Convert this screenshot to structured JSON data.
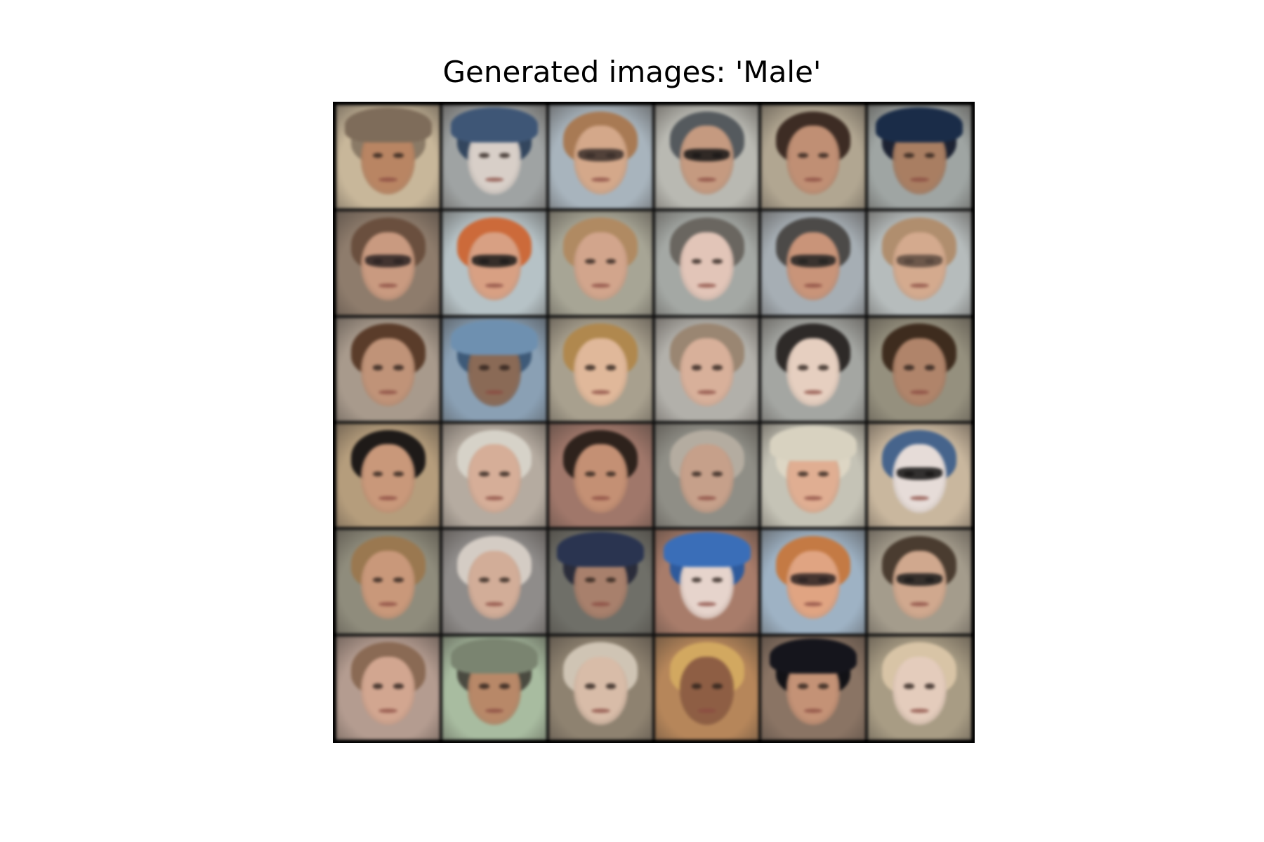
{
  "figure": {
    "title": "Generated images: 'Male'"
  },
  "grid": {
    "rows": 6,
    "cols": 6,
    "border_color": "#000000",
    "tiles": [
      {
        "bg": "#c8b79a",
        "hair": "#8a7a66",
        "skin": "#b98563",
        "acc": "hat",
        "accColor": "#7e6c5a"
      },
      {
        "bg": "#9fa3a3",
        "hair": "#33465e",
        "skin": "#d8cfc8",
        "acc": "hat",
        "accColor": "#3e5676"
      },
      {
        "bg": "#a8b4bd",
        "hair": "#a87a54",
        "skin": "#d4a88a",
        "acc": "glasses",
        "accColor": "#3a2f2a"
      },
      {
        "bg": "#b9b9b2",
        "hair": "#555a5e",
        "skin": "#c59a80",
        "acc": "glasses",
        "accColor": "#151515"
      },
      {
        "bg": "#b1a691",
        "hair": "#3d2c24",
        "skin": "#c08f74",
        "acc": "none",
        "accColor": ""
      },
      {
        "bg": "#9fa5a3",
        "hair": "#1c2232",
        "skin": "#a97e62",
        "acc": "hat",
        "accColor": "#1a2c48"
      },
      {
        "bg": "#8e7c6c",
        "hair": "#6a4f3e",
        "skin": "#c99a80",
        "acc": "glasses",
        "accColor": "#2a2222"
      },
      {
        "bg": "#b6c2c6",
        "hair": "#cc6a3a",
        "skin": "#d8a083",
        "acc": "glasses",
        "accColor": "#1a1a1a"
      },
      {
        "bg": "#a7a595",
        "hair": "#b08a62",
        "skin": "#d2a58c",
        "acc": "none",
        "accColor": ""
      },
      {
        "bg": "#a4a8a4",
        "hair": "#6a6660",
        "skin": "#e2c5b8",
        "acc": "none",
        "accColor": ""
      },
      {
        "bg": "#a6aeb4",
        "hair": "#4c4a48",
        "skin": "#c99479",
        "acc": "glasses",
        "accColor": "#222222"
      },
      {
        "bg": "#b6bcbc",
        "hair": "#b08e6e",
        "skin": "#d4aa8e",
        "acc": "glasses",
        "accColor": "#5a4a40"
      },
      {
        "bg": "#a89a8c",
        "hair": "#5a3c2a",
        "skin": "#c09378",
        "acc": "none",
        "accColor": ""
      },
      {
        "bg": "#8aa0b4",
        "hair": "#3e5a78",
        "skin": "#8a6a56",
        "acc": "hat",
        "accColor": "#6e90b0"
      },
      {
        "bg": "#a8a08e",
        "hair": "#b0884e",
        "skin": "#e0b89a",
        "acc": "none",
        "accColor": ""
      },
      {
        "bg": "#b2b0aa",
        "hair": "#9a8672",
        "skin": "#d8b09a",
        "acc": "none",
        "accColor": ""
      },
      {
        "bg": "#a4a6a2",
        "hair": "#2e2a28",
        "skin": "#e6cfc0",
        "acc": "none",
        "accColor": ""
      },
      {
        "bg": "#95907e",
        "hair": "#3e2c1e",
        "skin": "#b0846a",
        "acc": "none",
        "accColor": ""
      },
      {
        "bg": "#b59d7c",
        "hair": "#1e1a18",
        "skin": "#c9987a",
        "acc": "none",
        "accColor": ""
      },
      {
        "bg": "#b5aba0",
        "hair": "#d6d2c8",
        "skin": "#d6ae98",
        "acc": "none",
        "accColor": ""
      },
      {
        "bg": "#a0776a",
        "hair": "#2e221c",
        "skin": "#c49074",
        "acc": "none",
        "accColor": ""
      },
      {
        "bg": "#8f8e86",
        "hair": "#b4aca0",
        "skin": "#c6a08a",
        "acc": "none",
        "accColor": ""
      },
      {
        "bg": "#c5c3b6",
        "hair": "#ddd6c4",
        "skin": "#e0ae92",
        "acc": "hat",
        "accColor": "#d8d2c0"
      },
      {
        "bg": "#c9b79e",
        "hair": "#46648c",
        "skin": "#e6dcd8",
        "acc": "glasses",
        "accColor": "#121212"
      },
      {
        "bg": "#8f8c7c",
        "hair": "#9a7850",
        "skin": "#c9987a",
        "acc": "none",
        "accColor": ""
      },
      {
        "bg": "#8f8c8a",
        "hair": "#d4ccc4",
        "skin": "#d2ad98",
        "acc": "none",
        "accColor": ""
      },
      {
        "bg": "#6f6f68",
        "hair": "#2a2c3a",
        "skin": "#a8806c",
        "acc": "hat",
        "accColor": "#2a3450"
      },
      {
        "bg": "#a87c6a",
        "hair": "#2e5a9c",
        "skin": "#e6d4cc",
        "acc": "hat",
        "accColor": "#3a6eb8"
      },
      {
        "bg": "#9eb2c4",
        "hair": "#c47a44",
        "skin": "#e0a482",
        "acc": "glasses",
        "accColor": "#2a2222"
      },
      {
        "bg": "#a49c8c",
        "hair": "#4a3c30",
        "skin": "#d0a88e",
        "acc": "glasses",
        "accColor": "#1a1a1a"
      },
      {
        "bg": "#b49c90",
        "hair": "#8a6a54",
        "skin": "#d2a690",
        "acc": "none",
        "accColor": ""
      },
      {
        "bg": "#a8bca0",
        "hair": "#4a4a40",
        "skin": "#b88868",
        "acc": "hat",
        "accColor": "#7a8470"
      },
      {
        "bg": "#8e8270",
        "hair": "#cfc4b4",
        "skin": "#d8bca8",
        "acc": "none",
        "accColor": ""
      },
      {
        "bg": "#b6865a",
        "hair": "#d2a860",
        "skin": "#8e5e44",
        "acc": "none",
        "accColor": ""
      },
      {
        "bg": "#8a7464",
        "hair": "#121216",
        "skin": "#c49276",
        "acc": "hat",
        "accColor": "#15151c"
      },
      {
        "bg": "#a89c84",
        "hair": "#d8c4a6",
        "skin": "#e4ccbc",
        "acc": "none",
        "accColor": ""
      }
    ]
  }
}
